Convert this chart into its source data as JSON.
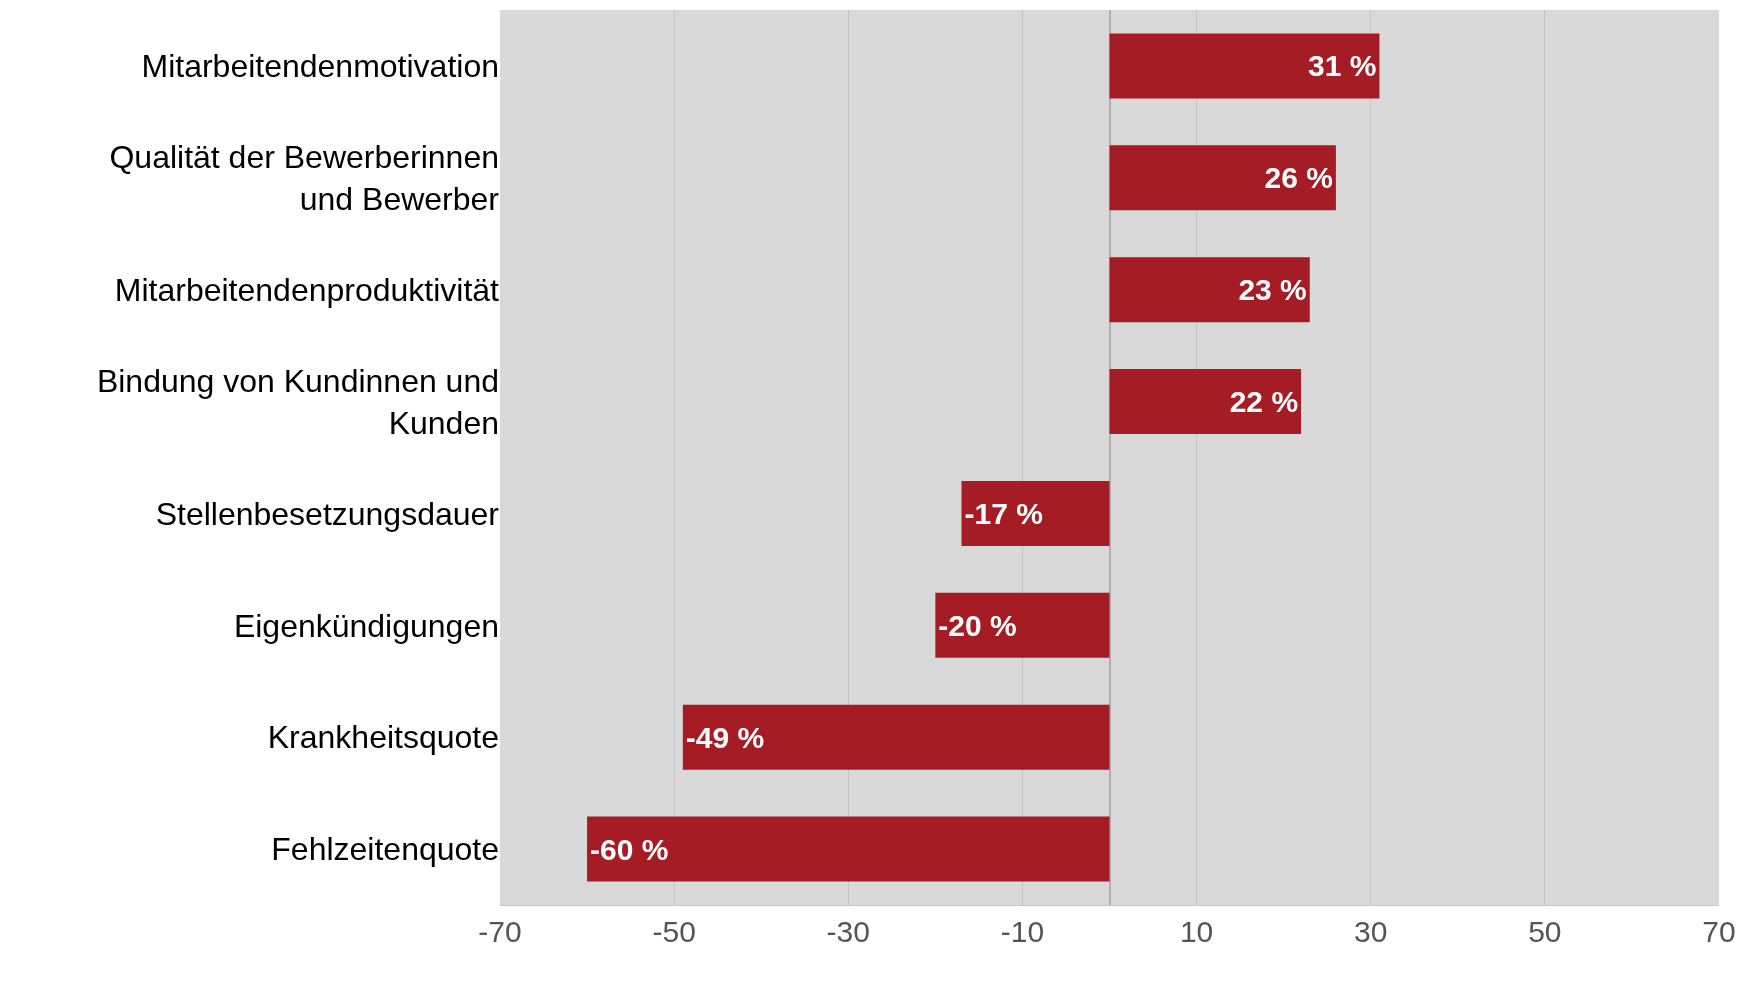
{
  "chart_data": {
    "type": "bar",
    "orientation": "horizontal",
    "categories": [
      "Mitarbeitendenmotivation",
      "Qualität der Bewerberinnen und Bewerber",
      "Mitarbeitendenproduktivität",
      "Bindung von Kundinnen und Kunden",
      "Stellenbesetzungsdauer",
      "Eigenkündigungen",
      "Krankheitsquote",
      "Fehlzeitenquote"
    ],
    "values": [
      31,
      26,
      23,
      22,
      -17,
      -20,
      -49,
      -60
    ],
    "value_labels": [
      "31 %",
      "26 %",
      "23 %",
      "22 %",
      "-17 %",
      "-20 %",
      "-49 %",
      "-60 %"
    ],
    "color": "#a51c24",
    "xlim": [
      -70,
      70
    ],
    "xticks": [
      -70,
      -50,
      -30,
      -10,
      10,
      30,
      50,
      70
    ],
    "grid": "x"
  }
}
